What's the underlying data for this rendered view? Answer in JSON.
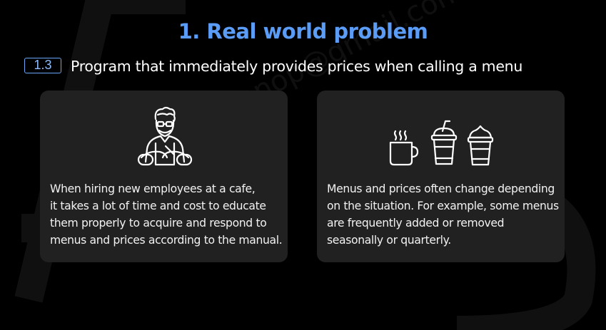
{
  "slide": {
    "title": "1. Real world problem",
    "section_number": "1.3",
    "subtitle": "Program that immediately provides prices when calling a menu"
  },
  "cards": [
    {
      "icon": "barista-icon",
      "text": "When hiring new employees at a cafe,\nit takes a lot of time and cost to educate\nthem properly to acquire and respond to\nmenus and prices according to the manual."
    },
    {
      "icons": [
        "hot-coffee-mug-icon",
        "iced-drink-cup-icon",
        "whipped-cream-cup-icon"
      ],
      "text": "Menus and prices often change depending\non the situation. For example, some menus\nare frequently added or removed\nseasonally or quarterly."
    }
  ],
  "watermark": "laxsunnop@gmail.com",
  "colors": {
    "background": "#000000",
    "title": "#5b9cf6",
    "badge_border": "#6aa6f8",
    "card": "#212121",
    "text": "#f2f2f2"
  }
}
